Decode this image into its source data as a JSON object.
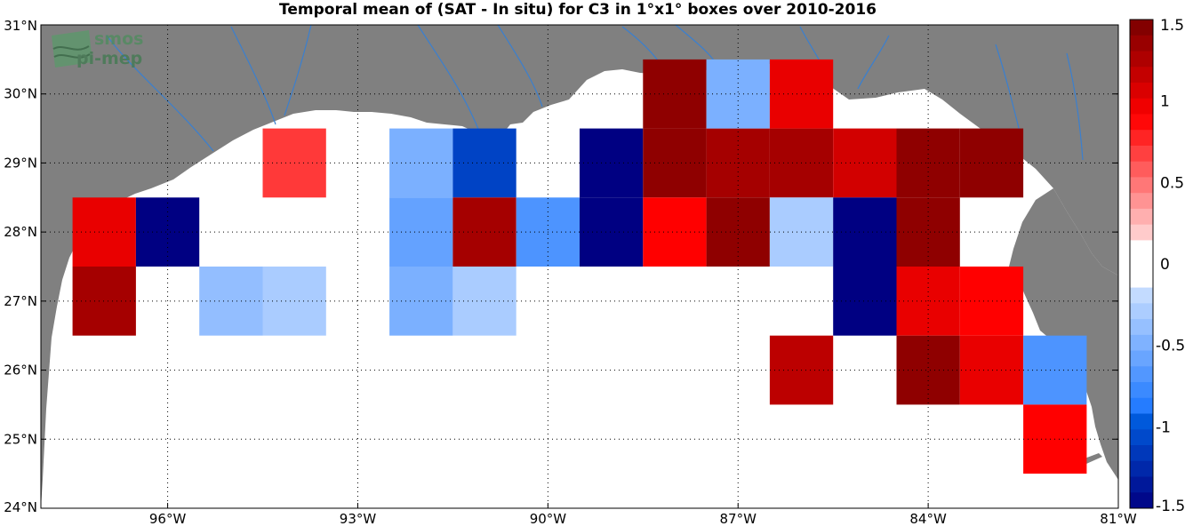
{
  "title": "Temporal mean of (SAT - In situ) for C3 in 1°x1° boxes over 2010-2016",
  "logo": {
    "line1": "smos",
    "line2": "pi-mep"
  },
  "lon_labels": [
    "96°W",
    "93°W",
    "90°W",
    "87°W",
    "84°W",
    "81°W"
  ],
  "lat_labels": [
    "31°N",
    "30°N",
    "29°N",
    "28°N",
    "27°N",
    "26°N",
    "25°N",
    "24°N"
  ],
  "colorbar": {
    "min": -1.5,
    "max": 1.5,
    "labels": [
      "1.5",
      "1",
      "0.5",
      "0",
      "-0.5",
      "-1",
      "-1.5"
    ],
    "colormap": "blue-white-red, 31 steps"
  },
  "colors": {
    "land": "#808080",
    "sea": "#ffffff",
    "rivers": "#3a7fcf",
    "logo": "#4c8c5c"
  },
  "chart_data": {
    "type": "heatmap",
    "title": "Temporal mean of (SAT - In situ) for C3 in 1°x1° boxes over 2010-2016",
    "xlim": [
      -98,
      -81
    ],
    "ylim": [
      24,
      31
    ],
    "cell_size_deg": 1,
    "cells": [
      {
        "lon": -94,
        "lat": 29,
        "value": 0.7
      },
      {
        "lon": -92,
        "lat": 29,
        "value": -0.5
      },
      {
        "lon": -91,
        "lat": 29,
        "value": -1.1
      },
      {
        "lon": -89,
        "lat": 29,
        "value": -1.5
      },
      {
        "lon": -88,
        "lat": 29,
        "value": 1.4
      },
      {
        "lon": -87,
        "lat": 29,
        "value": 1.3
      },
      {
        "lon": -86,
        "lat": 29,
        "value": 1.3
      },
      {
        "lon": -85,
        "lat": 29,
        "value": 1.1
      },
      {
        "lon": -84,
        "lat": 29,
        "value": 1.4
      },
      {
        "lon": -83,
        "lat": 29,
        "value": 1.4
      },
      {
        "lon": -88,
        "lat": 30,
        "value": 1.4
      },
      {
        "lon": -87,
        "lat": 30,
        "value": -0.5
      },
      {
        "lon": -86,
        "lat": 30,
        "value": 1.0
      },
      {
        "lon": -97,
        "lat": 28,
        "value": 1.0
      },
      {
        "lon": -96,
        "lat": 28,
        "value": -1.5
      },
      {
        "lon": -92,
        "lat": 28,
        "value": -0.6
      },
      {
        "lon": -91,
        "lat": 28,
        "value": 1.3
      },
      {
        "lon": -90,
        "lat": 28,
        "value": -0.7
      },
      {
        "lon": -89,
        "lat": 28,
        "value": -1.5
      },
      {
        "lon": -88,
        "lat": 28,
        "value": 0.9
      },
      {
        "lon": -87,
        "lat": 28,
        "value": 1.4
      },
      {
        "lon": -86,
        "lat": 28,
        "value": -0.3
      },
      {
        "lon": -85,
        "lat": 28,
        "value": -1.5
      },
      {
        "lon": -84,
        "lat": 28,
        "value": 1.4
      },
      {
        "lon": -97,
        "lat": 27,
        "value": 1.3
      },
      {
        "lon": -95,
        "lat": 27,
        "value": -0.4
      },
      {
        "lon": -94,
        "lat": 27,
        "value": -0.3
      },
      {
        "lon": -92,
        "lat": 27,
        "value": -0.5
      },
      {
        "lon": -91,
        "lat": 27,
        "value": -0.3
      },
      {
        "lon": -85,
        "lat": 27,
        "value": -1.5
      },
      {
        "lon": -84,
        "lat": 27,
        "value": 1.0
      },
      {
        "lon": -83,
        "lat": 27,
        "value": 0.9
      },
      {
        "lon": -86,
        "lat": 26,
        "value": 1.2
      },
      {
        "lon": -84,
        "lat": 26,
        "value": 1.4
      },
      {
        "lon": -83,
        "lat": 26,
        "value": 1.0
      },
      {
        "lon": -82,
        "lat": 26,
        "value": -0.7
      },
      {
        "lon": -82,
        "lat": 25,
        "value": 0.9
      }
    ]
  }
}
